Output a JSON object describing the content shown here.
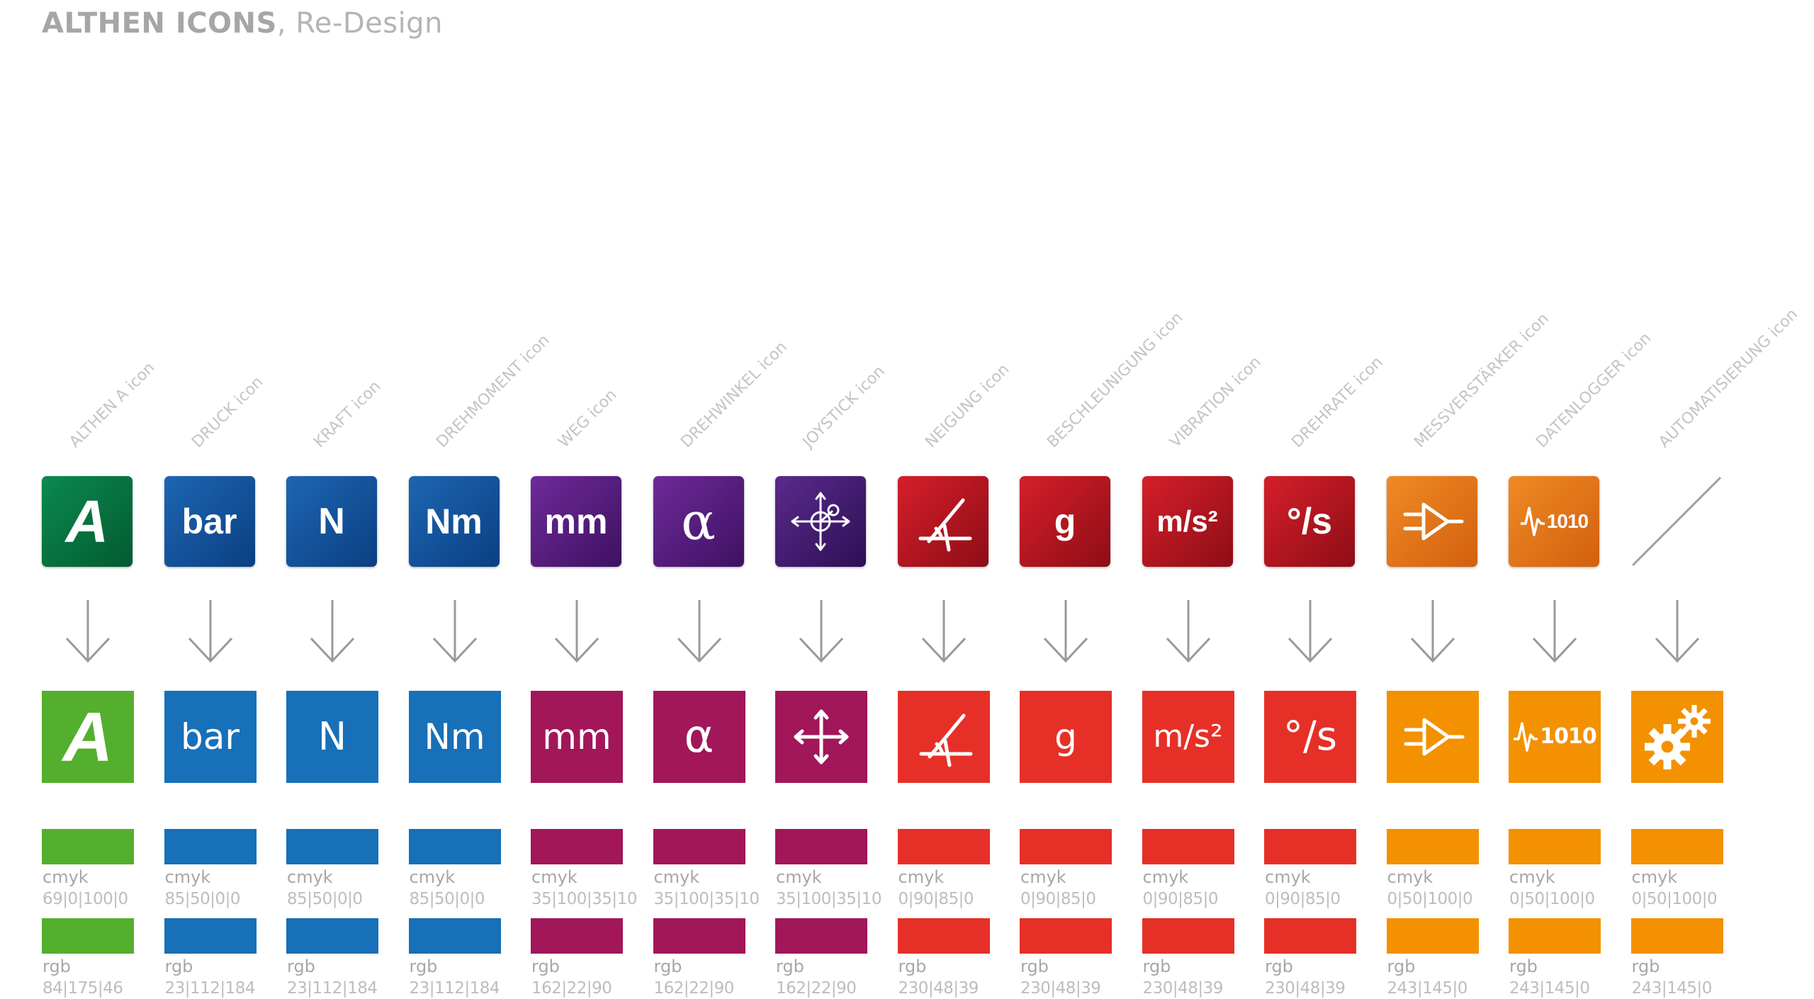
{
  "header": {
    "brand": "ALTHEN ICONS",
    "subtitle": ", Re-Design"
  },
  "colorspace": {
    "cmyk_label": "cmyk",
    "rgb_label": "rgb"
  },
  "icons": [
    {
      "label": "ALTHEN A icon",
      "glyph": "A",
      "old_grad": [
        "#0a8a4e",
        "#045a31"
      ],
      "new_color": "#54af2e",
      "cmyk": "69|0|100|0",
      "rgb": "84|175|46"
    },
    {
      "label": "DRUCK icon",
      "glyph": "bar",
      "old_grad": [
        "#1d66b2",
        "#0b3f82"
      ],
      "new_color": "#1770b8",
      "cmyk": "85|50|0|0",
      "rgb": "23|112|184"
    },
    {
      "label": "KRAFT icon",
      "glyph": "N",
      "old_grad": [
        "#1d66b2",
        "#0b3f82"
      ],
      "new_color": "#1770b8",
      "cmyk": "85|50|0|0",
      "rgb": "23|112|184"
    },
    {
      "label": "DREHMOMENT icon",
      "glyph": "Nm",
      "old_grad": [
        "#1d66b2",
        "#0b3f82"
      ],
      "new_color": "#1770b8",
      "cmyk": "85|50|0|0",
      "rgb": "23|112|184"
    },
    {
      "label": "WEG icon",
      "glyph": "mm",
      "old_grad": [
        "#6e2a9a",
        "#3e1161"
      ],
      "new_color": "#a2165a",
      "cmyk": "35|100|35|10",
      "rgb": "162|22|90"
    },
    {
      "label": "DREHWINKEL icon",
      "glyph": "α",
      "old_grad": [
        "#6e2a9a",
        "#3e1161"
      ],
      "new_color": "#a2165a",
      "cmyk": "35|100|35|10",
      "rgb": "162|22|90"
    },
    {
      "label": "JOYSTICK icon",
      "glyph": "",
      "old_grad": [
        "#5a2a8c",
        "#2e0f55"
      ],
      "new_color": "#a2165a",
      "cmyk": "35|100|35|10",
      "rgb": "162|22|90"
    },
    {
      "label": "NEIGUNG icon",
      "glyph": "",
      "old_grad": [
        "#d51f2a",
        "#8e0d16"
      ],
      "new_color": "#e63027",
      "cmyk": "0|90|85|0",
      "rgb": "230|48|39"
    },
    {
      "label": "BESCHLEUNIGUNG icon",
      "glyph": "g",
      "old_grad": [
        "#d51f2a",
        "#8e0d16"
      ],
      "new_color": "#e63027",
      "cmyk": "0|90|85|0",
      "rgb": "230|48|39"
    },
    {
      "label": "VIBRATION icon",
      "glyph": "m/s²",
      "glyph_new": "m/s²",
      "old_grad": [
        "#d51f2a",
        "#8e0d16"
      ],
      "new_color": "#e63027",
      "cmyk": "0|90|85|0",
      "rgb": "230|48|39"
    },
    {
      "label": "DREHRATE icon",
      "glyph": "°/s",
      "glyph_new": "°/s",
      "old_grad": [
        "#d51f2a",
        "#8e0d16"
      ],
      "new_color": "#e63027",
      "cmyk": "0|90|85|0",
      "rgb": "230|48|39"
    },
    {
      "label": "MESSVERSTÄRKER icon",
      "glyph": "",
      "old_grad": [
        "#f08a24",
        "#d2600f"
      ],
      "new_color": "#f39100",
      "cmyk": "0|50|100|0",
      "rgb": "243|145|0"
    },
    {
      "label": "DATENLOGGER icon",
      "glyph": "1010",
      "old_grad": [
        "#f08a24",
        "#d2600f"
      ],
      "new_color": "#f39100",
      "cmyk": "0|50|100|0",
      "rgb": "243|145|0"
    },
    {
      "label": "AUTOMATISIERUNG icon",
      "glyph": "",
      "old_grad": null,
      "new_color": "#f39100",
      "cmyk": "0|50|100|0",
      "rgb": "243|145|0"
    }
  ]
}
